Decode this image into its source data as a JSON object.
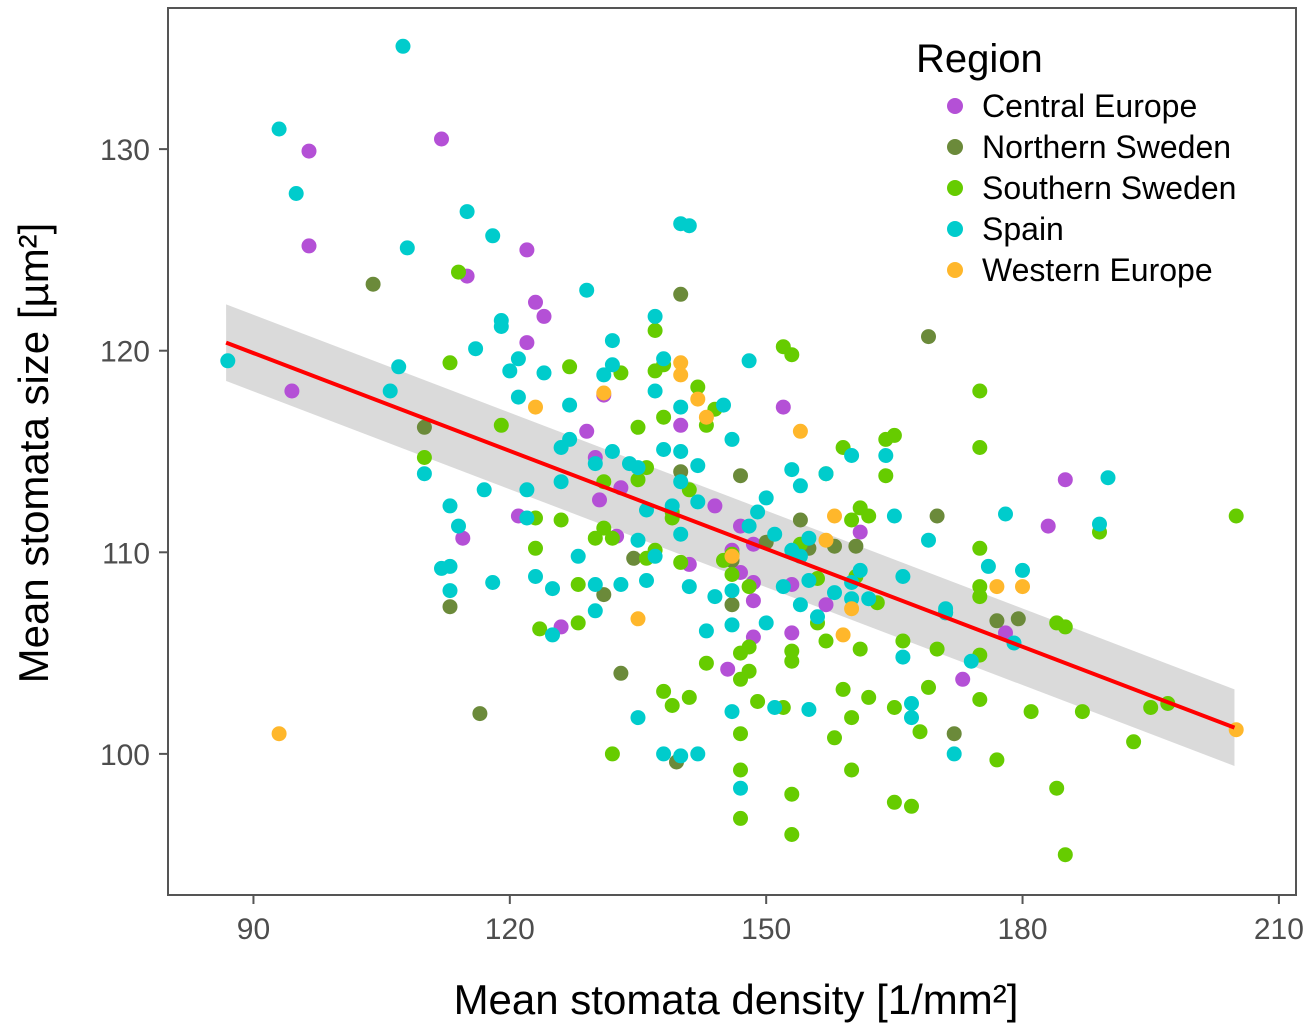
{
  "chart_data": {
    "type": "scatter",
    "xlabel": "Mean stomata density [1/mm²]",
    "ylabel": "Mean stomata size [µm²]",
    "xlim": [
      80,
      212
    ],
    "ylim": [
      93,
      137
    ],
    "x_ticks": [
      90,
      120,
      150,
      180,
      210
    ],
    "y_ticks": [
      100,
      110,
      120,
      130
    ],
    "grid": false,
    "legend": {
      "title": "Region",
      "placement": "top-right",
      "entries": [
        {
          "name": "Central Europe",
          "color": "#b450d6"
        },
        {
          "name": "Northern Sweden",
          "color": "#6b8a3a"
        },
        {
          "name": "Southern Sweden",
          "color": "#66cc00"
        },
        {
          "name": "Spain",
          "color": "#00cccc"
        },
        {
          "name": "Western Europe",
          "color": "#ffb72b"
        }
      ]
    },
    "trend_line": {
      "type": "linear",
      "color": "#ff0000",
      "x": [
        86.8,
        204.8
      ],
      "y": [
        120.4,
        101.3
      ],
      "ci_upper": [
        122.3,
        103.2
      ],
      "ci_lower": [
        118.5,
        99.4
      ],
      "ci_color": "#d3d3d3"
    },
    "series": [
      {
        "name": "Central Europe",
        "color": "#b450d6",
        "points": [
          [
            96.5,
            129.9
          ],
          [
            96.5,
            125.2
          ],
          [
            94.5,
            118
          ],
          [
            112,
            130.5
          ],
          [
            115,
            123.7
          ],
          [
            122,
            125
          ],
          [
            123,
            122.4
          ],
          [
            124,
            121.7
          ],
          [
            122,
            120.4
          ],
          [
            126,
            106.3
          ],
          [
            121,
            111.8
          ],
          [
            129,
            116
          ],
          [
            131,
            117.8
          ],
          [
            130,
            114.7
          ],
          [
            133,
            113.2
          ],
          [
            130.5,
            112.6
          ],
          [
            132.5,
            110.8
          ],
          [
            140,
            116.3
          ],
          [
            144,
            112.3
          ],
          [
            141,
            109.4
          ],
          [
            147,
            111.3
          ],
          [
            147,
            109
          ],
          [
            148.5,
            110.4
          ],
          [
            146,
            110.1
          ],
          [
            148.5,
            108.5
          ],
          [
            148.5,
            107.6
          ],
          [
            145.5,
            104.2
          ],
          [
            148.5,
            105.8
          ],
          [
            152,
            117.2
          ],
          [
            153,
            108.4
          ],
          [
            153,
            106
          ],
          [
            157,
            107.4
          ],
          [
            161,
            111
          ],
          [
            173,
            103.7
          ],
          [
            178,
            106
          ],
          [
            183,
            111.3
          ],
          [
            185,
            113.6
          ],
          [
            114.5,
            110.7
          ]
        ]
      },
      {
        "name": "Northern Sweden",
        "color": "#6b8a3a",
        "points": [
          [
            104,
            123.3
          ],
          [
            110,
            116.2
          ],
          [
            113,
            107.3
          ],
          [
            116.5,
            102
          ],
          [
            133,
            104
          ],
          [
            140,
            122.8
          ],
          [
            139.5,
            99.6
          ],
          [
            140,
            114
          ],
          [
            147,
            113.8
          ],
          [
            146,
            109.6
          ],
          [
            146,
            107.4
          ],
          [
            150,
            110.5
          ],
          [
            154,
            111.6
          ],
          [
            158,
            110.3
          ],
          [
            155,
            110.2
          ],
          [
            160.5,
            110.3
          ],
          [
            169,
            120.7
          ],
          [
            170,
            111.8
          ],
          [
            171,
            107
          ],
          [
            172,
            101
          ],
          [
            177,
            106.6
          ],
          [
            179.5,
            106.7
          ],
          [
            131,
            107.9
          ],
          [
            134.5,
            109.7
          ]
        ]
      },
      {
        "name": "Southern Sweden",
        "color": "#66cc00",
        "points": [
          [
            113,
            119.4
          ],
          [
            110,
            114.7
          ],
          [
            114,
            123.9
          ],
          [
            119,
            116.3
          ],
          [
            123,
            111.7
          ],
          [
            123.5,
            106.2
          ],
          [
            123,
            110.2
          ],
          [
            126,
            111.6
          ],
          [
            127,
            119.2
          ],
          [
            128,
            106.5
          ],
          [
            131,
            111.2
          ],
          [
            132,
            110.7
          ],
          [
            131,
            113.5
          ],
          [
            133,
            118.9
          ],
          [
            135,
            116.2
          ],
          [
            135,
            113.6
          ],
          [
            136,
            114.2
          ],
          [
            137,
            121
          ],
          [
            137,
            119
          ],
          [
            138,
            116.7
          ],
          [
            139,
            112
          ],
          [
            137,
            110.1
          ],
          [
            140,
            109.5
          ],
          [
            141,
            113.1
          ],
          [
            142,
            118.2
          ],
          [
            144,
            117.1
          ],
          [
            143,
            116.3
          ],
          [
            145,
            109.6
          ],
          [
            146,
            109.9
          ],
          [
            146,
            108.9
          ],
          [
            147,
            105
          ],
          [
            148,
            105.3
          ],
          [
            147,
            103.7
          ],
          [
            148,
            104.1
          ],
          [
            147,
            101
          ],
          [
            147,
            99.2
          ],
          [
            149,
            102.6
          ],
          [
            148,
            108.3
          ],
          [
            152,
            120.2
          ],
          [
            153,
            119.8
          ],
          [
            153,
            105.1
          ],
          [
            153,
            104.6
          ],
          [
            153,
            98
          ],
          [
            153,
            96
          ],
          [
            156,
            106.5
          ],
          [
            157,
            105.6
          ],
          [
            157,
            113.9
          ],
          [
            159,
            115.2
          ],
          [
            160,
            111.6
          ],
          [
            161,
            112.2
          ],
          [
            162,
            111.8
          ],
          [
            160,
            101.8
          ],
          [
            160,
            99.2
          ],
          [
            161,
            105.2
          ],
          [
            162,
            102.8
          ],
          [
            164,
            115.6
          ],
          [
            165,
            115.8
          ],
          [
            164,
            113.8
          ],
          [
            165,
            102.3
          ],
          [
            166,
            105.6
          ],
          [
            167,
            97.4
          ],
          [
            165,
            97.6
          ],
          [
            168,
            101.1
          ],
          [
            169,
            103.3
          ],
          [
            170,
            105.2
          ],
          [
            175,
            118
          ],
          [
            175,
            115.2
          ],
          [
            175,
            110.2
          ],
          [
            175,
            108.3
          ],
          [
            175,
            107.8
          ],
          [
            175,
            104.9
          ],
          [
            175,
            102.7
          ],
          [
            177,
            99.7
          ],
          [
            181,
            102.1
          ],
          [
            184,
            106.5
          ],
          [
            185,
            106.3
          ],
          [
            184,
            98.3
          ],
          [
            185,
            95
          ],
          [
            187,
            102.1
          ],
          [
            189,
            111
          ],
          [
            193,
            100.6
          ],
          [
            195,
            102.3
          ],
          [
            197,
            102.5
          ],
          [
            205,
            111.8
          ],
          [
            138,
            119.3
          ],
          [
            136,
            109.7
          ],
          [
            139,
            102.4
          ],
          [
            138,
            103.1
          ],
          [
            141,
            102.8
          ],
          [
            143,
            104.5
          ],
          [
            147,
            96.8
          ],
          [
            158,
            100.8
          ],
          [
            159,
            103.2
          ],
          [
            160.5,
            108.8
          ],
          [
            163,
            107.5
          ],
          [
            132,
            100
          ],
          [
            130,
            110.7
          ],
          [
            139,
            111.7
          ],
          [
            128,
            108.4
          ],
          [
            154,
            110.4
          ],
          [
            152,
            102.3
          ],
          [
            156,
            108.7
          ]
        ]
      },
      {
        "name": "Spain",
        "color": "#00cccc",
        "points": [
          [
            87,
            119.5
          ],
          [
            93,
            131
          ],
          [
            95,
            127.8
          ],
          [
            107.5,
            135.1
          ],
          [
            108,
            125.1
          ],
          [
            107,
            119.2
          ],
          [
            106,
            118
          ],
          [
            110,
            113.9
          ],
          [
            112,
            109.2
          ],
          [
            113,
            109.3
          ],
          [
            113,
            108.1
          ],
          [
            114,
            111.3
          ],
          [
            113,
            112.3
          ],
          [
            115,
            126.9
          ],
          [
            116,
            120.1
          ],
          [
            117,
            113.1
          ],
          [
            118,
            125.7
          ],
          [
            118,
            108.5
          ],
          [
            119,
            121.2
          ],
          [
            119,
            121.5
          ],
          [
            120,
            119
          ],
          [
            121,
            119.6
          ],
          [
            121,
            117.7
          ],
          [
            122,
            111.7
          ],
          [
            122,
            113.1
          ],
          [
            123,
            108.8
          ],
          [
            124,
            118.9
          ],
          [
            125,
            108.2
          ],
          [
            125,
            105.9
          ],
          [
            126,
            113.5
          ],
          [
            126,
            115.2
          ],
          [
            127,
            117.3
          ],
          [
            127,
            115.6
          ],
          [
            128,
            109.8
          ],
          [
            129,
            123
          ],
          [
            130,
            114.4
          ],
          [
            130,
            108.4
          ],
          [
            130,
            107.1
          ],
          [
            131,
            118.8
          ],
          [
            132,
            120.5
          ],
          [
            132,
            119.3
          ],
          [
            132,
            115
          ],
          [
            134,
            114.4
          ],
          [
            135,
            114.2
          ],
          [
            135,
            110.6
          ],
          [
            136,
            108.6
          ],
          [
            137,
            121.7
          ],
          [
            137,
            118
          ],
          [
            138,
            119.6
          ],
          [
            138,
            115.1
          ],
          [
            139,
            112.3
          ],
          [
            140,
            126.3
          ],
          [
            141,
            126.2
          ],
          [
            140,
            117.2
          ],
          [
            140,
            115
          ],
          [
            140,
            113.5
          ],
          [
            140,
            110.9
          ],
          [
            141,
            108.3
          ],
          [
            142,
            112.5
          ],
          [
            142,
            114.3
          ],
          [
            143,
            106.1
          ],
          [
            144,
            107.8
          ],
          [
            145,
            117.3
          ],
          [
            146,
            115.6
          ],
          [
            146,
            108.1
          ],
          [
            146,
            106.4
          ],
          [
            146,
            102.1
          ],
          [
            147,
            98.3
          ],
          [
            148,
            119.5
          ],
          [
            148,
            111.3
          ],
          [
            149,
            112
          ],
          [
            150,
            112.7
          ],
          [
            150,
            106.5
          ],
          [
            151,
            110.9
          ],
          [
            151,
            102.3
          ],
          [
            152,
            108.3
          ],
          [
            153,
            114.1
          ],
          [
            153,
            110.1
          ],
          [
            154,
            113.3
          ],
          [
            154,
            109.8
          ],
          [
            154,
            107.4
          ],
          [
            155,
            108.6
          ],
          [
            155,
            110.7
          ],
          [
            155,
            102.2
          ],
          [
            156,
            106.8
          ],
          [
            157,
            113.9
          ],
          [
            158,
            108
          ],
          [
            160,
            114.8
          ],
          [
            160,
            108.5
          ],
          [
            160,
            107.7
          ],
          [
            161,
            109.1
          ],
          [
            162,
            107.7
          ],
          [
            164,
            114.8
          ],
          [
            165,
            111.8
          ],
          [
            166,
            108.8
          ],
          [
            166,
            104.8
          ],
          [
            167,
            102.5
          ],
          [
            167,
            101.8
          ],
          [
            169,
            110.6
          ],
          [
            171,
            107
          ],
          [
            171,
            107.2
          ],
          [
            172,
            100
          ],
          [
            174,
            104.6
          ],
          [
            176,
            109.3
          ],
          [
            178,
            111.9
          ],
          [
            180,
            109.1
          ],
          [
            179,
            105.5
          ],
          [
            189,
            111.4
          ],
          [
            190,
            113.7
          ],
          [
            136,
            112.1
          ],
          [
            135,
            101.8
          ],
          [
            138,
            100
          ],
          [
            140,
            99.9
          ],
          [
            137,
            109.8
          ],
          [
            142,
            100
          ],
          [
            133,
            108.4
          ]
        ]
      },
      {
        "name": "Western Europe",
        "color": "#ffb72b",
        "points": [
          [
            93,
            101
          ],
          [
            123,
            117.2
          ],
          [
            131,
            117.9
          ],
          [
            135,
            106.7
          ],
          [
            140,
            119.4
          ],
          [
            140,
            118.8
          ],
          [
            142,
            117.6
          ],
          [
            143,
            116.7
          ],
          [
            146,
            109.8
          ],
          [
            154,
            116
          ],
          [
            157,
            110.6
          ],
          [
            158,
            111.8
          ],
          [
            159,
            105.9
          ],
          [
            160,
            107.2
          ],
          [
            177,
            108.3
          ],
          [
            180,
            108.3
          ],
          [
            205,
            101.2
          ]
        ]
      }
    ]
  }
}
